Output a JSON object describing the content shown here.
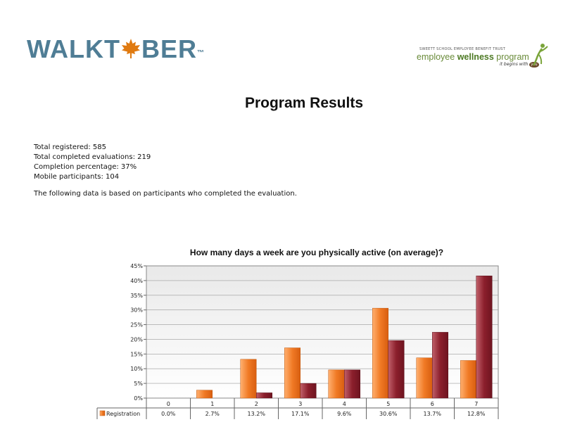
{
  "header": {
    "logo_left_text_a": "WALKT",
    "logo_left_text_b": "BER",
    "logo_left_tm": "™",
    "logo_right_trust": "SWEETT SCHOOL EMPLOYEE BENEFIT TRUST",
    "logo_right_prefix": "employee ",
    "logo_right_bold": "wellness",
    "logo_right_suffix": " program",
    "logo_right_tagline": "it begins with ",
    "logo_right_badge": "you"
  },
  "title": "Program Results",
  "stats": [
    "Total registered: 585",
    "Total completed evaluations: 219",
    "Completion percentage: 37%",
    "Mobile participants: 104"
  ],
  "note": "The following data is based on participants who completed the evaluation.",
  "colors": {
    "logo_blue": "#4f7d95",
    "leaf_orange": "#e07a10",
    "registration_bar": "#f07a25",
    "evaluation_bar": "#8c1f2c"
  },
  "chart_data": {
    "type": "bar",
    "title": "How many days a week are you physically active (on average)?",
    "categories": [
      "0",
      "1",
      "2",
      "3",
      "4",
      "5",
      "6",
      "7"
    ],
    "series": [
      {
        "name": "Registration",
        "values": [
          0.0,
          2.7,
          13.2,
          17.1,
          9.6,
          30.6,
          13.7,
          12.8
        ],
        "labels": [
          "0.0%",
          "2.7%",
          "13.2%",
          "17.1%",
          "9.6%",
          "30.6%",
          "13.7%",
          "12.8%"
        ]
      },
      {
        "values": [
          0.0,
          0.0,
          1.8,
          5.0,
          9.6,
          19.6,
          22.4,
          41.6
        ]
      }
    ],
    "yticks": [
      "0%",
      "5%",
      "10%",
      "15%",
      "20%",
      "25%",
      "30%",
      "35%",
      "40%",
      "45%"
    ],
    "ylim": [
      0,
      45
    ],
    "grid": true,
    "legend": "data-table"
  }
}
